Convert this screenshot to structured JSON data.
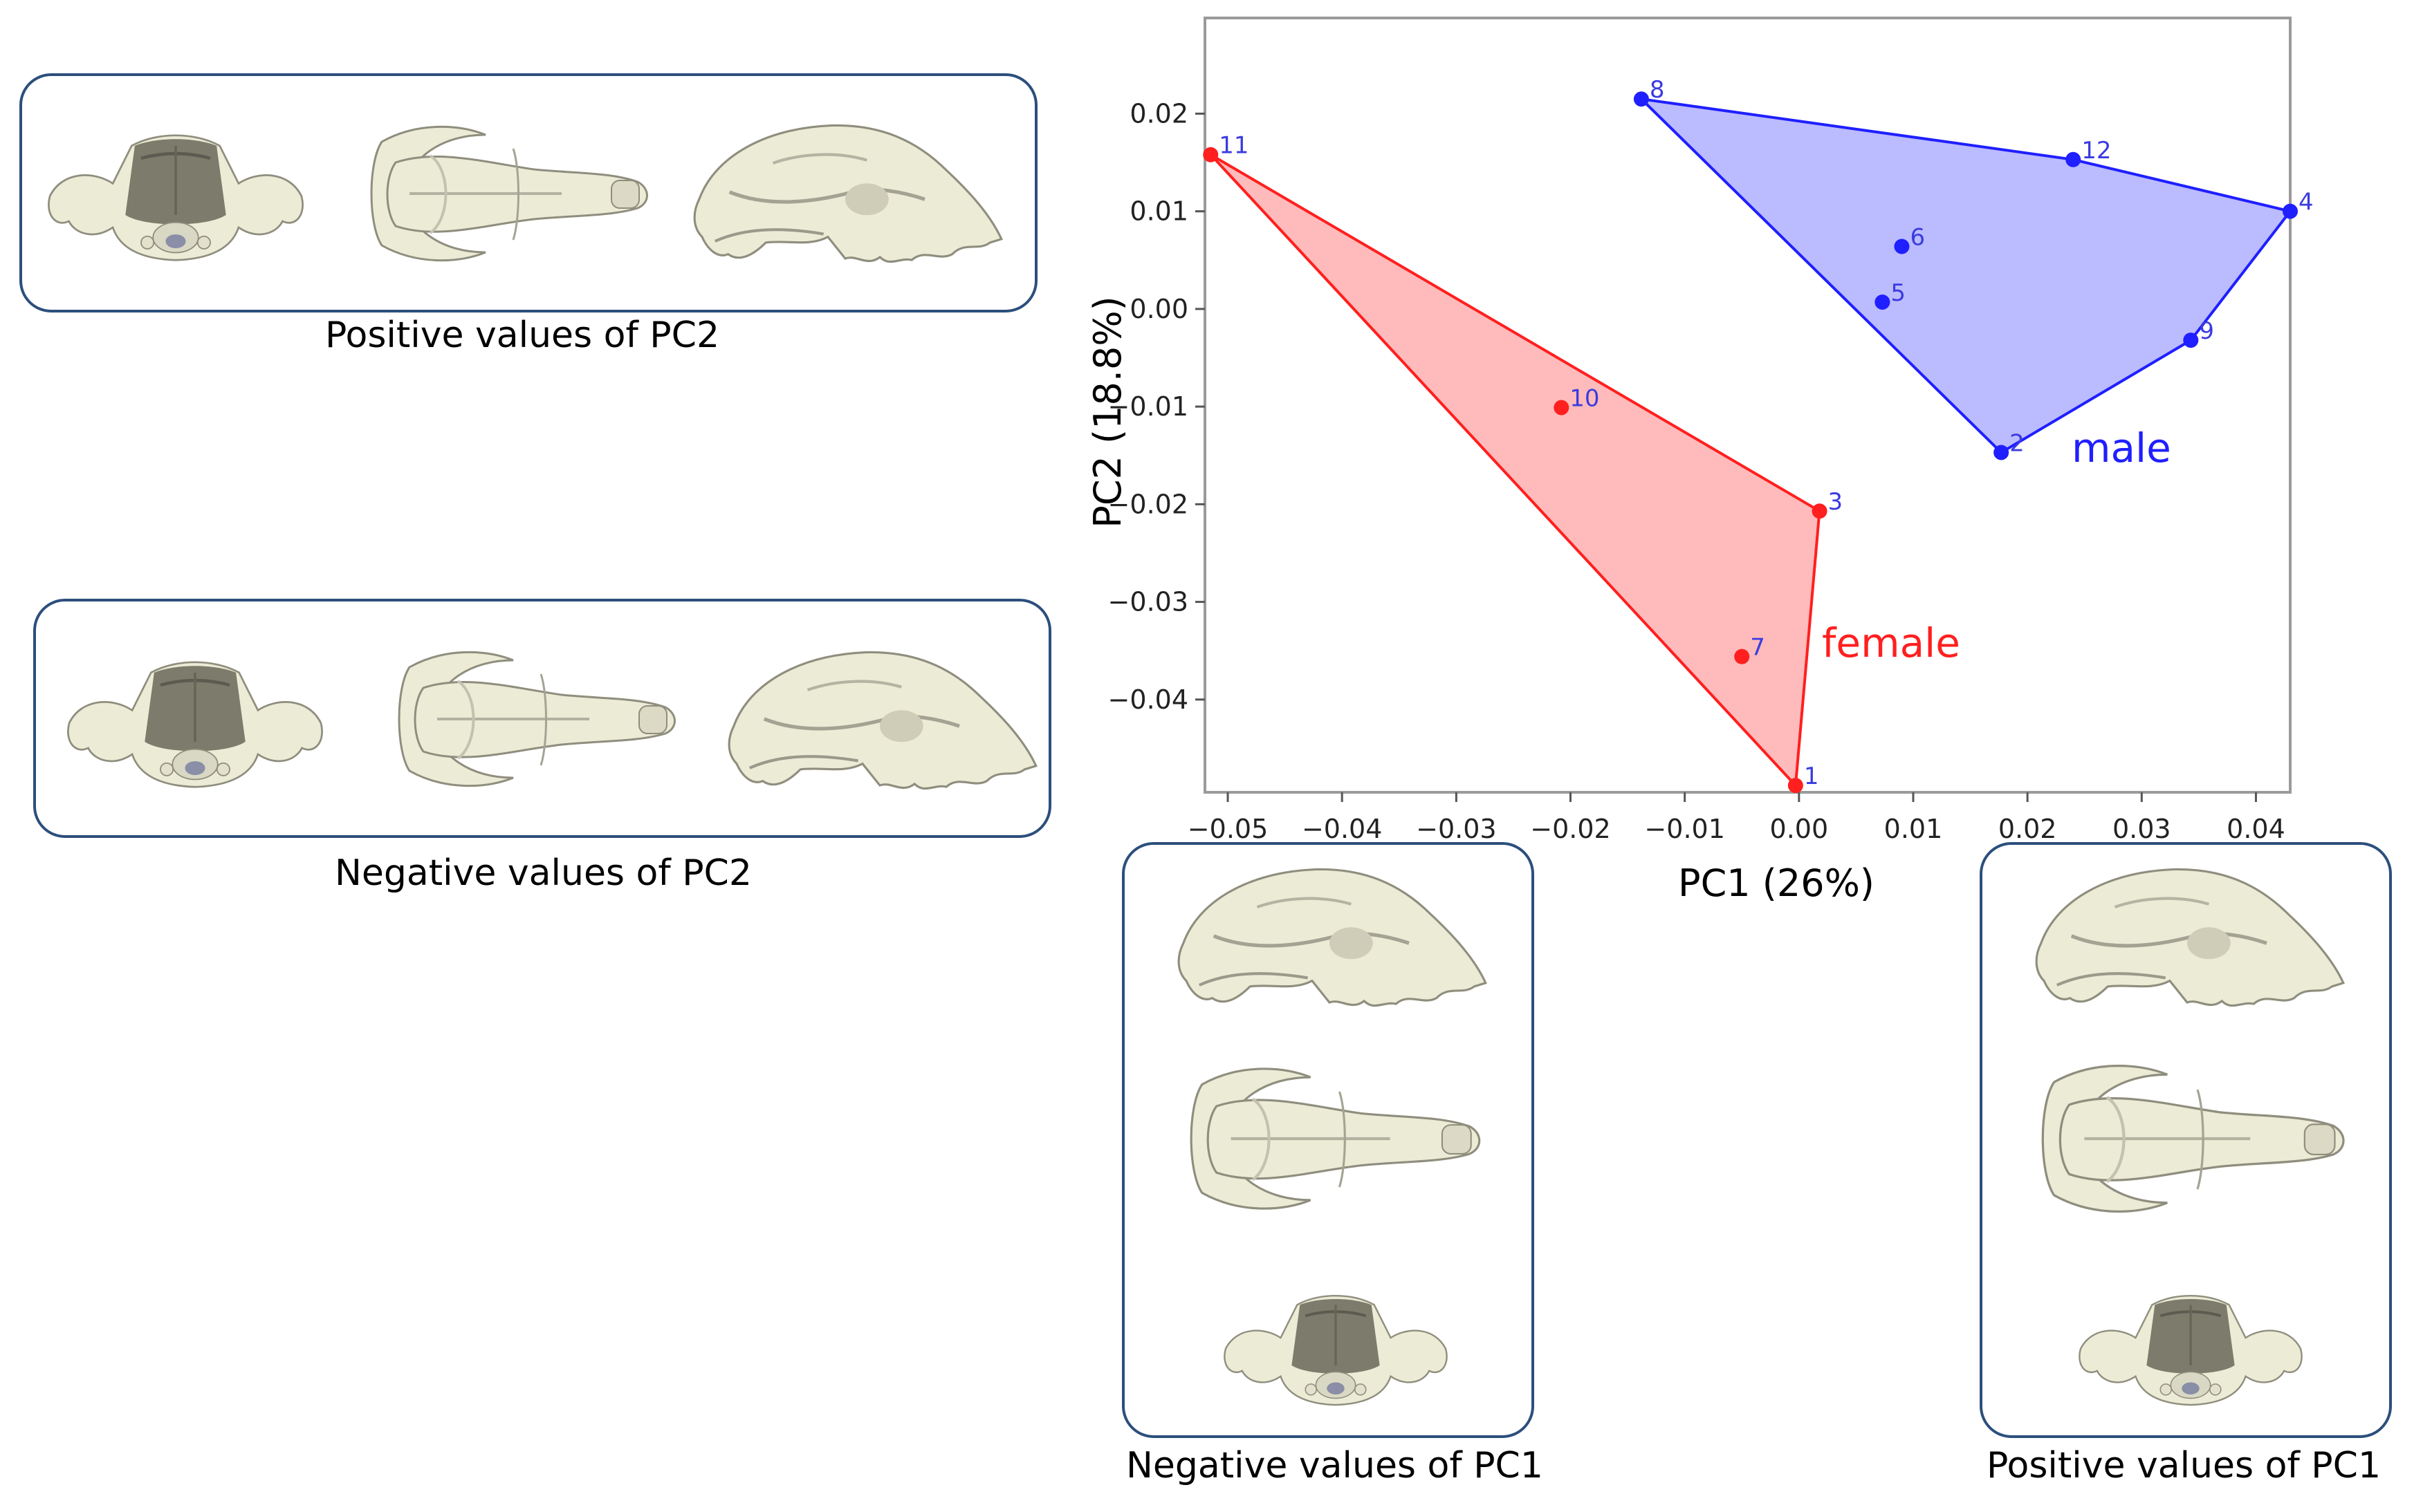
{
  "captions": {
    "pc2_positive": "Positive values of PC2",
    "pc2_negative": "Negative values of PC2",
    "pc1_negative": "Negative values of PC1",
    "pc1_positive": "Positive values of PC1"
  },
  "skull_views": {
    "pc2_positive": [
      "posterior-view-icon",
      "dorsal-view-icon",
      "lateral-view-icon"
    ],
    "pc2_negative": [
      "posterior-view-icon",
      "dorsal-view-icon",
      "lateral-view-icon"
    ],
    "pc1_negative": [
      "lateral-view-icon",
      "dorsal-view-icon",
      "posterior-view-icon"
    ],
    "pc1_positive": [
      "lateral-view-icon",
      "dorsal-view-icon",
      "posterior-view-icon"
    ]
  },
  "colors": {
    "bone": "#ecebd6",
    "bone_shadow": "#7c7b6c",
    "panel_border": "#2c4f7c",
    "male": "#1f1fff",
    "female": "#ff1f1f"
  },
  "chart_data": {
    "type": "scatter",
    "xlabel": "PC1 (26%)",
    "ylabel": "PC2 (18.8%)",
    "xlim": [
      -0.052,
      0.043
    ],
    "ylim": [
      -0.0495,
      0.0298
    ],
    "xticks": [
      -0.05,
      -0.04,
      -0.03,
      -0.02,
      -0.01,
      0.0,
      0.01,
      0.02,
      0.03,
      0.04
    ],
    "xtick_labels": [
      "−0.05",
      "−0.04",
      "−0.03",
      "−0.02",
      "−0.01",
      "0.00",
      "0.01",
      "0.02",
      "0.03",
      "0.04"
    ],
    "yticks": [
      0.02,
      0.01,
      0.0,
      -0.01,
      -0.02,
      -0.03,
      -0.04
    ],
    "ytick_labels": [
      "0.02",
      "0.01",
      "0.00",
      "−0.01",
      "−0.02",
      "−0.03",
      "−0.04"
    ],
    "grid": false,
    "series": [
      {
        "name": "male",
        "color": "#1f1fff",
        "points": [
          {
            "label": "8",
            "x": -0.0138,
            "y": 0.0215
          },
          {
            "label": "12",
            "x": 0.024,
            "y": 0.0153
          },
          {
            "label": "4",
            "x": 0.043,
            "y": 0.01
          },
          {
            "label": "6",
            "x": 0.009,
            "y": 0.0064
          },
          {
            "label": "5",
            "x": 0.0073,
            "y": 0.0007
          },
          {
            "label": "9",
            "x": 0.0343,
            "y": -0.0032
          },
          {
            "label": "2",
            "x": 0.0177,
            "y": -0.0147
          }
        ],
        "hull": [
          "8",
          "12",
          "4",
          "9",
          "2"
        ]
      },
      {
        "name": "female",
        "color": "#ff1f1f",
        "points": [
          {
            "label": "11",
            "x": -0.0515,
            "y": 0.0158
          },
          {
            "label": "10",
            "x": -0.0208,
            "y": -0.0101
          },
          {
            "label": "3",
            "x": 0.0018,
            "y": -0.0207
          },
          {
            "label": "7",
            "x": -0.005,
            "y": -0.0356
          },
          {
            "label": "1",
            "x": -0.0003,
            "y": -0.0488
          }
        ],
        "hull": [
          "11",
          "3",
          "1"
        ]
      }
    ]
  }
}
